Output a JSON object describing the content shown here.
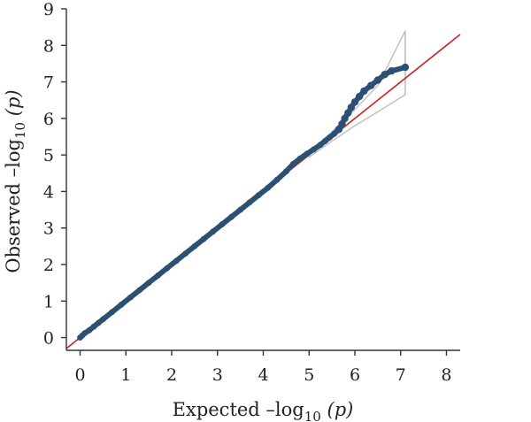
{
  "chart_data": {
    "type": "scatter",
    "title": "",
    "xlabel": {
      "prefix": "Expected –log",
      "sub": "10",
      "suffix": " (p)"
    },
    "ylabel": {
      "prefix": "Observed –log",
      "sub": "10",
      "suffix": " (p)"
    },
    "xlim": [
      -0.3,
      8.3
    ],
    "ylim": [
      -0.35,
      9
    ],
    "x_ticks": [
      "0",
      "1",
      "2",
      "3",
      "4",
      "5",
      "6",
      "7",
      "8"
    ],
    "y_ticks": [
      "0",
      "1",
      "2",
      "3",
      "4",
      "5",
      "6",
      "7",
      "8",
      "9"
    ],
    "grid": false,
    "colors": {
      "points": "#2c4f74",
      "reference_line": "#cc2222",
      "confidence_band": "#bfbfbf",
      "axis": "#333333"
    },
    "reference_line": {
      "from": [
        -0.3,
        -0.3
      ],
      "to": [
        8.3,
        8.3
      ]
    },
    "confidence_band": {
      "upper": [
        [
          5.0,
          5.07
        ],
        [
          5.5,
          5.64
        ],
        [
          6.0,
          6.24
        ],
        [
          6.5,
          6.9
        ],
        [
          7.1,
          8.4
        ]
      ],
      "lower": [
        [
          5.0,
          4.94
        ],
        [
          5.5,
          5.38
        ],
        [
          6.0,
          5.8
        ],
        [
          6.5,
          6.18
        ],
        [
          7.1,
          6.65
        ]
      ]
    },
    "series": [
      {
        "points": [
          [
            0.0,
            0.0
          ],
          [
            0.05,
            0.06
          ],
          [
            0.1,
            0.12
          ],
          [
            0.2,
            0.2
          ],
          [
            0.3,
            0.3
          ],
          [
            0.4,
            0.4
          ],
          [
            0.5,
            0.5
          ],
          [
            0.7,
            0.7
          ],
          [
            0.9,
            0.9
          ],
          [
            1.1,
            1.1
          ],
          [
            1.3,
            1.3
          ],
          [
            1.5,
            1.5
          ],
          [
            1.7,
            1.7
          ],
          [
            1.9,
            1.9
          ],
          [
            2.1,
            2.1
          ],
          [
            2.3,
            2.3
          ],
          [
            2.5,
            2.5
          ],
          [
            2.7,
            2.7
          ],
          [
            2.9,
            2.9
          ],
          [
            3.1,
            3.1
          ],
          [
            3.3,
            3.3
          ],
          [
            3.5,
            3.5
          ],
          [
            3.7,
            3.7
          ],
          [
            3.9,
            3.9
          ],
          [
            4.1,
            4.1
          ],
          [
            4.3,
            4.32
          ],
          [
            4.5,
            4.55
          ],
          [
            4.65,
            4.75
          ],
          [
            4.8,
            4.9
          ],
          [
            4.95,
            5.03
          ],
          [
            5.1,
            5.15
          ],
          [
            5.25,
            5.28
          ],
          [
            5.35,
            5.38
          ],
          [
            5.45,
            5.48
          ],
          [
            5.55,
            5.58
          ],
          [
            5.65,
            5.7
          ],
          [
            5.72,
            5.85
          ],
          [
            5.78,
            6.0
          ],
          [
            5.85,
            6.15
          ],
          [
            5.92,
            6.3
          ],
          [
            6.0,
            6.45
          ],
          [
            6.1,
            6.6
          ],
          [
            6.2,
            6.75
          ],
          [
            6.35,
            6.9
          ],
          [
            6.5,
            7.05
          ],
          [
            6.65,
            7.2
          ],
          [
            6.8,
            7.3
          ],
          [
            7.1,
            7.4
          ]
        ]
      }
    ]
  }
}
